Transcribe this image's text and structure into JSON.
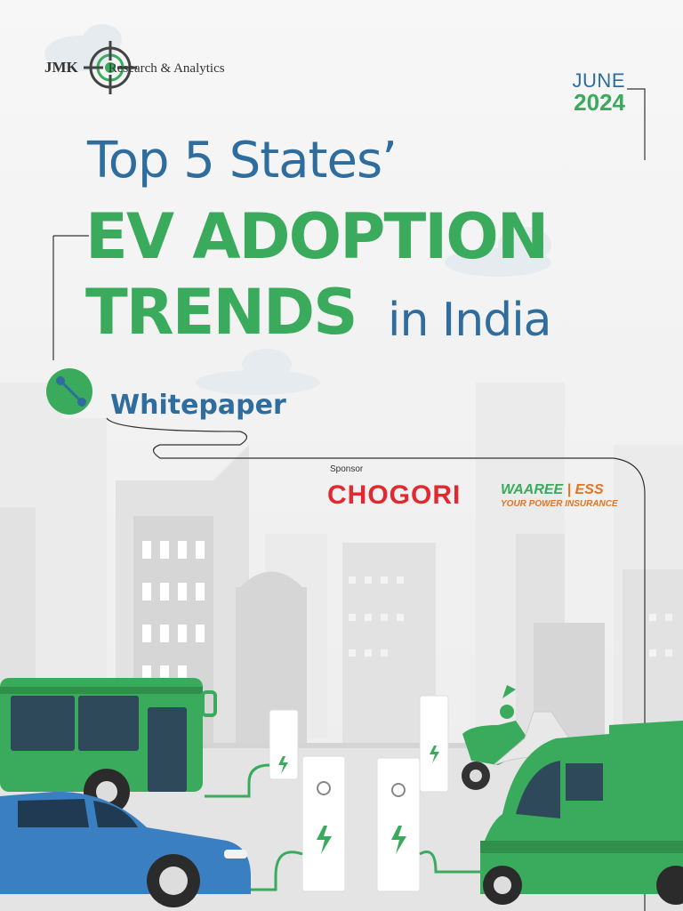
{
  "header": {
    "logo_name": "JMK",
    "logo_tagline": "Research & Analytics",
    "month": "JUNE",
    "year": "2024"
  },
  "title": {
    "line1": "Top 5 States’",
    "line2": "EV ADOPTION",
    "line3_bold": "TRENDS",
    "line3_regular": "in India"
  },
  "subtitle": "Whitepaper",
  "sponsors": {
    "label": "Sponsor",
    "sponsor1": "CHOGORI",
    "sponsor2_name": "WAAREE",
    "sponsor2_suffix": "ESS",
    "sponsor2_tagline": "YOUR POWER INSURANCE"
  },
  "colors": {
    "blue": "#2f6d9e",
    "green": "#3aaa5c",
    "red": "#e12a2f",
    "orange": "#e8731e"
  }
}
